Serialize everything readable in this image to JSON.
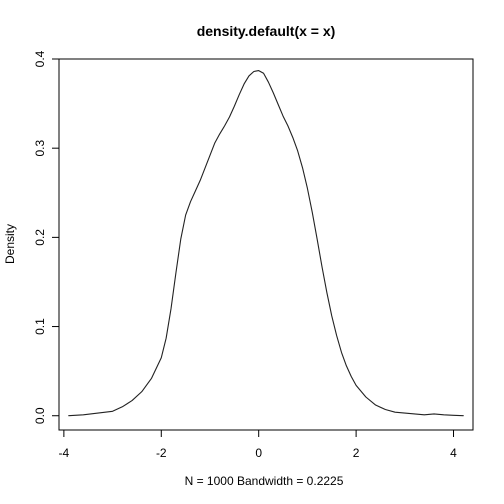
{
  "chart_data": {
    "type": "line",
    "title": "density.default(x = x)",
    "xlabel": "N = 1000   Bandwidth = 0.2225",
    "ylabel": "Density",
    "xlim": [
      -4.1,
      4.4
    ],
    "ylim": [
      0,
      0.4
    ],
    "xticks": [
      -4,
      -2,
      0,
      2,
      4
    ],
    "xtick_labels": [
      "-4",
      "-2",
      "0",
      "2",
      "4"
    ],
    "yticks": [
      0.0,
      0.1,
      0.2,
      0.3,
      0.4
    ],
    "ytick_labels": [
      "0.0",
      "0.1",
      "0.2",
      "0.3",
      "0.4"
    ],
    "grid": false,
    "series": [
      {
        "x": [
          -3.9,
          -3.6,
          -3.3,
          -3.0,
          -2.8,
          -2.6,
          -2.4,
          -2.2,
          -2.0,
          -1.9,
          -1.8,
          -1.7,
          -1.6,
          -1.5,
          -1.4,
          -1.3,
          -1.2,
          -1.1,
          -1.0,
          -0.9,
          -0.8,
          -0.7,
          -0.6,
          -0.5,
          -0.4,
          -0.3,
          -0.2,
          -0.1,
          0.0,
          0.1,
          0.2,
          0.3,
          0.4,
          0.5,
          0.6,
          0.7,
          0.8,
          0.9,
          1.0,
          1.1,
          1.2,
          1.3,
          1.4,
          1.5,
          1.6,
          1.7,
          1.8,
          1.9,
          2.0,
          2.2,
          2.4,
          2.6,
          2.8,
          3.0,
          3.2,
          3.4,
          3.6,
          3.8,
          4.0,
          4.2
        ],
        "y": [
          0.0,
          0.001,
          0.003,
          0.005,
          0.01,
          0.017,
          0.027,
          0.042,
          0.065,
          0.087,
          0.12,
          0.16,
          0.198,
          0.225,
          0.24,
          0.252,
          0.264,
          0.278,
          0.292,
          0.306,
          0.316,
          0.325,
          0.335,
          0.347,
          0.36,
          0.372,
          0.381,
          0.386,
          0.387,
          0.384,
          0.374,
          0.362,
          0.349,
          0.336,
          0.325,
          0.312,
          0.297,
          0.278,
          0.255,
          0.228,
          0.198,
          0.167,
          0.138,
          0.112,
          0.09,
          0.071,
          0.056,
          0.044,
          0.034,
          0.021,
          0.012,
          0.007,
          0.004,
          0.003,
          0.002,
          0.001,
          0.002,
          0.001,
          0.0005,
          0.0
        ]
      }
    ],
    "colors": {
      "line": "#222222",
      "axis": "#000000"
    }
  }
}
